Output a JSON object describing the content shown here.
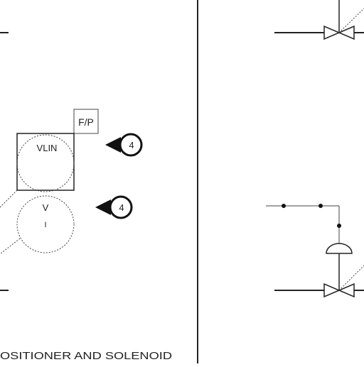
{
  "diagram": {
    "positioner_box_label": "F/P",
    "instrument_1_tag": "VLIN",
    "instrument_2_tag": "V",
    "instrument_2_subtag": "I",
    "callout_1_number": "4",
    "callout_2_number": "4",
    "caption": "OSITIONER AND SOLENOID"
  },
  "colors": {
    "line": "#222222",
    "background": "#ffffff"
  }
}
